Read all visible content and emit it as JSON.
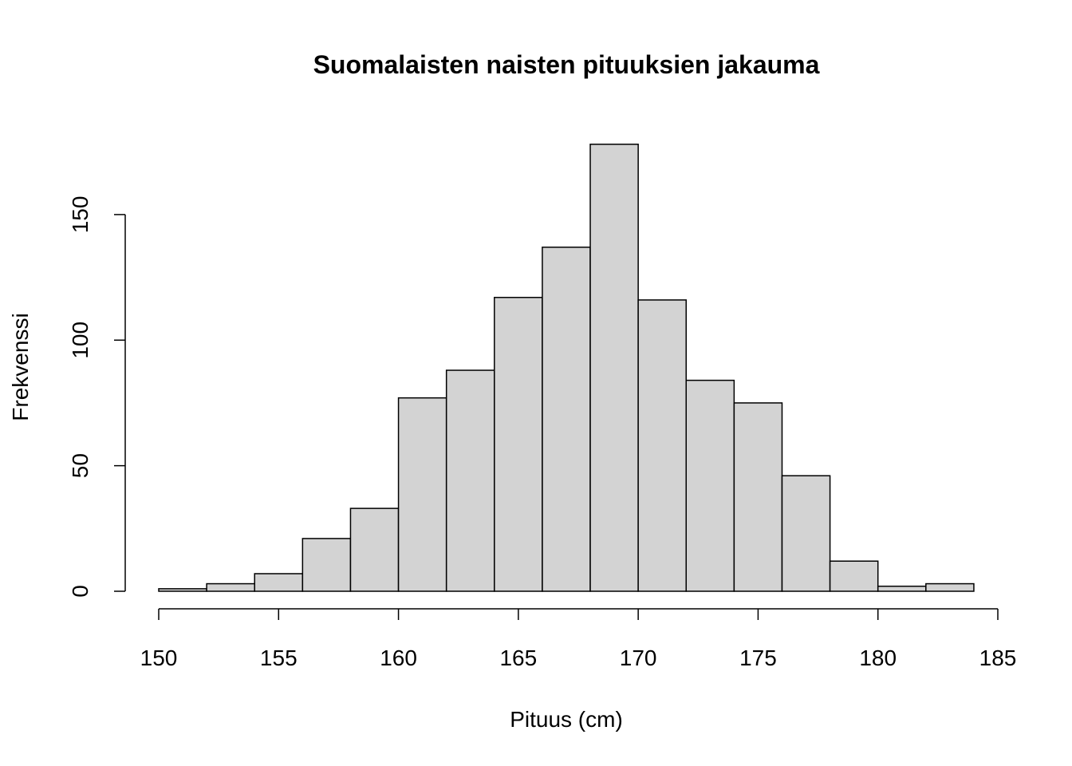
{
  "chart_data": {
    "type": "histogram",
    "title": "Suomalaisten naisten pituuksien jakauma",
    "x_label": "Pituus (cm)",
    "y_label": "Frekvenssi",
    "bins": [
      150,
      152,
      154,
      156,
      158,
      160,
      162,
      164,
      166,
      168,
      170,
      172,
      174,
      176,
      178,
      180,
      182,
      184
    ],
    "values": [
      1,
      3,
      7,
      21,
      33,
      77,
      88,
      117,
      137,
      178,
      116,
      84,
      75,
      46,
      12,
      2,
      3
    ],
    "color": "#d3d3d3",
    "xlim": [
      150,
      185
    ],
    "xticks": [
      150,
      155,
      160,
      165,
      170,
      175,
      180,
      185
    ],
    "ylim": [
      0,
      180
    ],
    "yticks": [
      0,
      50,
      100,
      150
    ]
  }
}
